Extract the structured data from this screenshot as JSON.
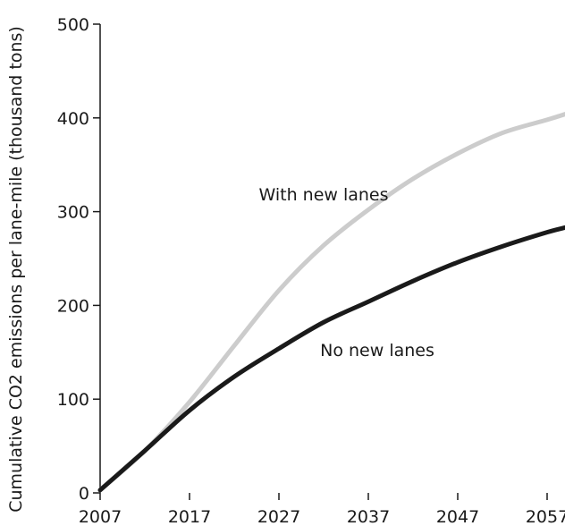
{
  "chart_data": {
    "type": "line",
    "title": "",
    "xlabel": "",
    "ylabel": "Cumulative CO2 emissions per lane-mile (thousand tons)",
    "xlim": [
      2007,
      2059
    ],
    "ylim": [
      0,
      500
    ],
    "x_ticks": [
      "2007",
      "2017",
      "2027",
      "2037",
      "2047",
      "2057"
    ],
    "y_ticks": [
      "0",
      "100",
      "200",
      "300",
      "400",
      "500"
    ],
    "grid": false,
    "series": [
      {
        "name": "With new lanes",
        "color": "#cccccc",
        "x": [
          2007,
          2012,
          2017,
          2022,
          2027,
          2032,
          2037,
          2042,
          2047,
          2052,
          2057,
          2059
        ],
        "y": [
          3,
          45,
          97,
          157,
          216,
          264,
          302,
          335,
          362,
          384,
          398,
          404
        ]
      },
      {
        "name": "No new lanes",
        "color": "#1a1a1a",
        "x": [
          2007,
          2012,
          2017,
          2022,
          2027,
          2032,
          2037,
          2042,
          2047,
          2052,
          2057,
          2059
        ],
        "y": [
          3,
          45,
          88,
          124,
          154,
          182,
          204,
          226,
          246,
          263,
          278,
          283
        ]
      }
    ],
    "annotations": [
      {
        "text": "With new lanes",
        "x": 2032,
        "y": 312
      },
      {
        "text": "No new lanes",
        "x": 2038,
        "y": 146
      }
    ]
  }
}
